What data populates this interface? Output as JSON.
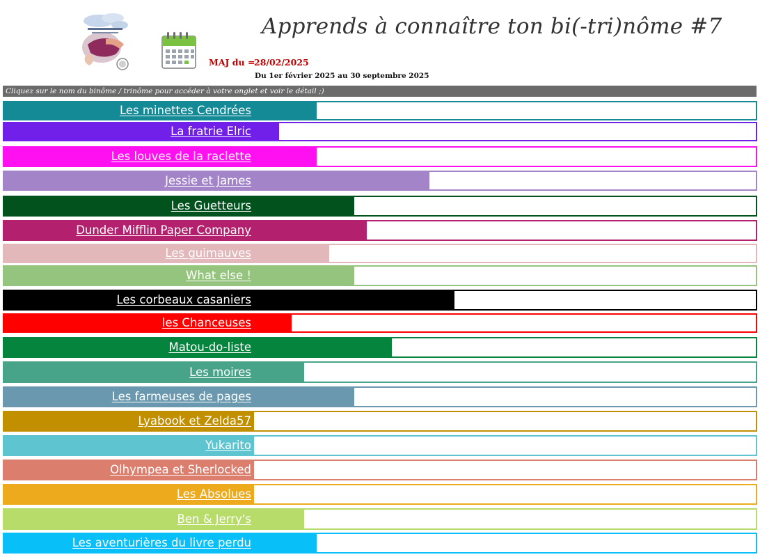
{
  "header": {
    "title": "Apprends à connaître ton bi(-tri)nôme #7",
    "maj_label": "MAJ du =",
    "maj_date": "28/02/2025",
    "period": "Du 1er février 2025 au 30 septembre 2025",
    "logo_icon": "challenge-logo-icon",
    "calendar_icon": "calendar-icon"
  },
  "instruction": "Cliquez sur le nom du binôme / trinôme pour accéder à votre onglet et voir le détail ;)",
  "teams": [
    {
      "name": "Les minettes Cendrées",
      "color": "#138a96",
      "progress": 0.125
    },
    {
      "name": "La fratrie Elric",
      "color": "#7020e8",
      "progress": 0.05
    },
    {
      "name": "Les louves de la raclette",
      "color": "#ff10f0",
      "progress": 0.125
    },
    {
      "name": "Jessie et James",
      "color": "#a484c8",
      "progress": 0.35
    },
    {
      "name": "Les Guetteurs",
      "color": "#02521e",
      "progress": 0.2
    },
    {
      "name": "Dunder Mifflin Paper Company",
      "color": "#b3206e",
      "progress": 0.225
    },
    {
      "name": "Les guimauves",
      "color": "#e3b8bb",
      "progress": 0.15
    },
    {
      "name": "What else !",
      "color": "#94c47e",
      "progress": 0.2
    },
    {
      "name": "Les corbeaux casaniers",
      "color": "#000000",
      "progress": 0.4
    },
    {
      "name": "les Chanceuses",
      "color": "#ff0000",
      "progress": 0.075
    },
    {
      "name": "Matou-do-liste",
      "color": "#04843c",
      "progress": 0.275
    },
    {
      "name": "Les moires",
      "color": "#48a488",
      "progress": 0.1
    },
    {
      "name": "Les farmeuses de pages",
      "color": "#6a98ae",
      "progress": 0.2
    },
    {
      "name": "Lyabook et Zelda57",
      "color": "#c18f00",
      "progress": 0
    },
    {
      "name": "Yukarito",
      "color": "#5ec4cf",
      "progress": 0
    },
    {
      "name": "Olhympea et Sherlocked",
      "color": "#dc7e6e",
      "progress": 0
    },
    {
      "name": "Les Absolues",
      "color": "#edaa1d",
      "progress": 0
    },
    {
      "name": "Ben & Jerry's",
      "color": "#b8dc6a",
      "progress": 0.1
    },
    {
      "name": "Les aventurières du livre perdu",
      "color": "#08bff8",
      "progress": 0.125
    }
  ]
}
